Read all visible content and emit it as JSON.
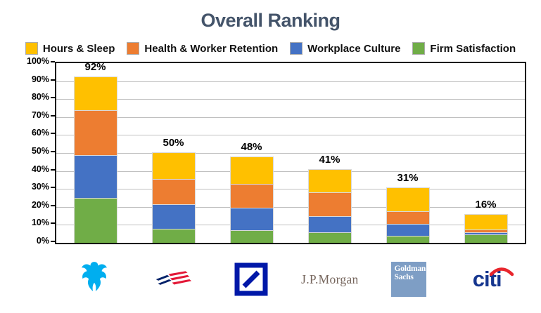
{
  "title": "Overall Ranking",
  "colors": {
    "title": "#44546A",
    "hours_sleep": "#FFC000",
    "health_retention": "#ED7D31",
    "workplace_culture": "#4472C4",
    "firm_satisfaction": "#70AD47",
    "gridline": "#BFBFBF",
    "axis": "#000000"
  },
  "legend": [
    {
      "label": "Hours & Sleep",
      "color": "#FFC000"
    },
    {
      "label": "Health & Worker Retention",
      "color": "#ED7D31"
    },
    {
      "label": "Workplace Culture",
      "color": "#4472C4"
    },
    {
      "label": "Firm Satisfaction",
      "color": "#70AD47"
    }
  ],
  "chart_data": {
    "type": "stacked-bar",
    "title": "Overall Ranking",
    "categories": [
      "Barclays",
      "Bank of America",
      "Deutsche Bank",
      "J.P.Morgan",
      "Goldman Sachs",
      "Citi"
    ],
    "series": [
      {
        "name": "Firm Satisfaction",
        "color": "#70AD47",
        "values": [
          25,
          8,
          7,
          6,
          4,
          4.5
        ]
      },
      {
        "name": "Workplace Culture",
        "color": "#4472C4",
        "values": [
          24,
          13.5,
          12.5,
          9,
          6.5,
          1.5
        ]
      },
      {
        "name": "Health & Worker Retention",
        "color": "#ED7D31",
        "values": [
          25,
          14,
          13.5,
          13,
          7,
          1.5
        ]
      },
      {
        "name": "Hours & Sleep",
        "color": "#FFC000",
        "values": [
          18.5,
          15,
          15,
          13,
          13.5,
          8.5
        ]
      }
    ],
    "totals_labels": [
      "92%",
      "50%",
      "48%",
      "41%",
      "31%",
      "16%"
    ],
    "y_axis": {
      "min": 0,
      "max": 100,
      "step": 10,
      "ticks": [
        "100%",
        "90%",
        "80%",
        "70%",
        "60%",
        "50%",
        "40%",
        "30%",
        "20%",
        "10%",
        "0%"
      ]
    },
    "grid": true,
    "legend_position": "top",
    "stack_order_bottom_to_top": [
      "Firm Satisfaction",
      "Workplace Culture",
      "Health & Worker Retention",
      "Hours & Sleep"
    ]
  },
  "logos": {
    "jpmorgan_text": "J.P.Morgan",
    "goldman_line1": "Goldman",
    "goldman_line2": "Sachs",
    "citi_text": "citi"
  }
}
